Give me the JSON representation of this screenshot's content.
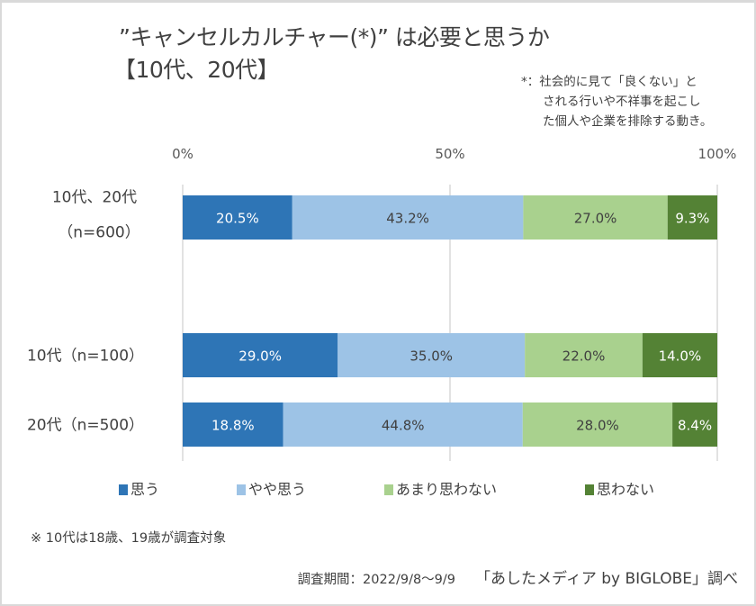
{
  "chart_data": {
    "type": "bar",
    "orientation": "horizontal",
    "stacked": true,
    "title": "”キャンセルカルチャー(*)” は必要と思うか",
    "subtitle": "【10代、20代】",
    "footnote": [
      "*：社会的に見て「良くない」と",
      "される行いや不祥事を起こし",
      "た個人や企業を排除する動き。"
    ],
    "xlabel": "",
    "ylabel": "",
    "xlim": [
      0,
      100
    ],
    "x_ticks": [
      "0%",
      "50%",
      "100%"
    ],
    "grid": true,
    "legend_position": "bottom",
    "categories": [
      {
        "line1": "10代、20代",
        "line2": "（n=600）"
      },
      {
        "line1": "10代（n=100）",
        "line2": ""
      },
      {
        "line1": "20代（n=500）",
        "line2": ""
      }
    ],
    "series": [
      {
        "name": "思う",
        "color": "#2e75b6",
        "label_color": "#ffffff",
        "values": [
          20.5,
          29.0,
          18.8
        ],
        "labels": [
          "20.5%",
          "29.0%",
          "18.8%"
        ]
      },
      {
        "name": "やや思う",
        "color": "#9dc3e6",
        "label_color": "#404040",
        "values": [
          43.2,
          35.0,
          44.8
        ],
        "labels": [
          "43.2%",
          "35.0%",
          "44.8%"
        ]
      },
      {
        "name": "あまり思わない",
        "color": "#a9d18e",
        "label_color": "#404040",
        "values": [
          27.0,
          22.0,
          28.0
        ],
        "labels": [
          "27.0%",
          "22.0%",
          "28.0%"
        ]
      },
      {
        "name": "思わない",
        "color": "#548235",
        "label_color": "#ffffff",
        "values": [
          9.3,
          14.0,
          8.4
        ],
        "labels": [
          "9.3%",
          "14.0%",
          "8.4%"
        ]
      }
    ],
    "note": "※ 10代は18歳、19歳が調査対象",
    "survey_period": "調査期間：2022/9/8～9/9",
    "source": "「あしたメディア by BIGLOBE」調べ"
  }
}
